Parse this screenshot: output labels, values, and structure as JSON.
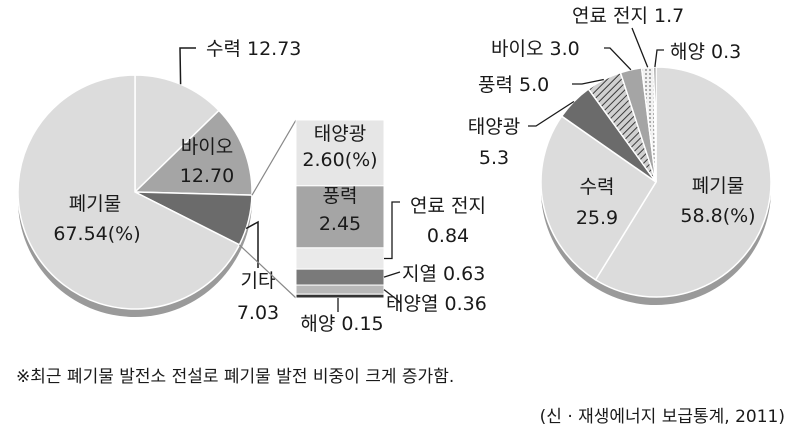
{
  "chart_data": [
    {
      "type": "pie",
      "unit": "%",
      "slices": [
        {
          "label": "수력",
          "value": 12.73,
          "value_text": "12.73",
          "color": "#dcdcdc"
        },
        {
          "label": "바이오",
          "value": 12.7,
          "value_text": "12.70",
          "color": "#a5a5a5"
        },
        {
          "label": "기타",
          "value": 7.03,
          "value_text": "7.03",
          "color": "#6b6b6b"
        },
        {
          "label": "폐기물",
          "value": 67.54,
          "value_text": "67.54(%)",
          "color": "#dcdcdc"
        }
      ]
    },
    {
      "type": "bar",
      "stacked": true,
      "breakdown_of": "기타",
      "segments": [
        {
          "label": "태양광",
          "value": 2.6,
          "value_text": "2.60(%)",
          "color": "#e6e6e6"
        },
        {
          "label": "풍력",
          "value": 2.45,
          "value_text": "2.45",
          "color": "#a5a5a5"
        },
        {
          "label": "연료 전지",
          "value": 0.84,
          "value_text": "0.84",
          "color": "#eaeaea"
        },
        {
          "label": "지열",
          "value": 0.63,
          "value_text": "0.63",
          "color": "#7a7a7a"
        },
        {
          "label": "태양열",
          "value": 0.36,
          "value_text": "0.36",
          "color": "#b8b8b8"
        },
        {
          "label": "해양",
          "value": 0.15,
          "value_text": "0.15",
          "color": "#333333"
        }
      ]
    },
    {
      "type": "pie",
      "unit": "%",
      "slices": [
        {
          "label": "폐기물",
          "value": 58.8,
          "value_text": "58.8(%)",
          "color": "#dcdcdc"
        },
        {
          "label": "수력",
          "value": 25.9,
          "value_text": "25.9",
          "color": "#dcdcdc"
        },
        {
          "label": "태양광",
          "value": 5.3,
          "value_text": "5.3",
          "color": "#6b6b6b"
        },
        {
          "label": "풍력",
          "value": 5.0,
          "value_text": "5.0",
          "color": "#8a8a8a"
        },
        {
          "label": "바이오",
          "value": 3.0,
          "value_text": "3.0",
          "color": "#a5a5a5"
        },
        {
          "label": "연료 전지",
          "value": 1.7,
          "value_text": "1.7",
          "color": "#e6e6e6"
        },
        {
          "label": "해양",
          "value": 0.3,
          "value_text": "0.3",
          "color": "#333333"
        }
      ]
    }
  ],
  "notes": {
    "main": "※최근 폐기물 발전소 전설로 폐기물 발전 비중이 크게 증가함.",
    "source": "(신 · 재생에너지 보급통계, 2011)"
  }
}
